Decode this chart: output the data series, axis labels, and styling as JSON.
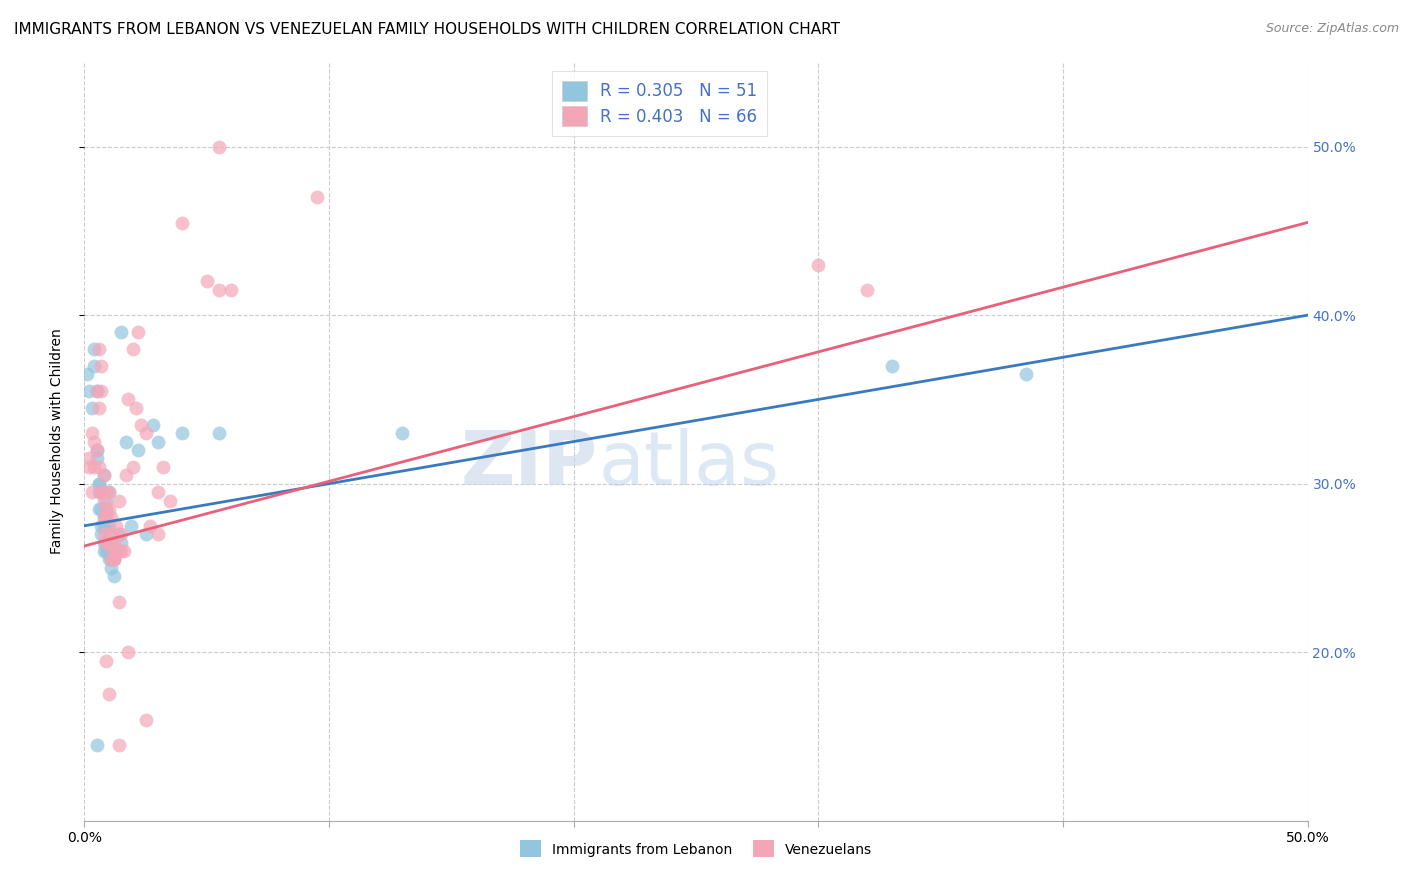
{
  "title": "IMMIGRANTS FROM LEBANON VS VENEZUELAN FAMILY HOUSEHOLDS WITH CHILDREN CORRELATION CHART",
  "source": "Source: ZipAtlas.com",
  "ylabel": "Family Households with Children",
  "xlim": [
    0.0,
    0.5
  ],
  "ylim": [
    0.1,
    0.55
  ],
  "yticks": [
    0.2,
    0.3,
    0.4,
    0.5
  ],
  "ytick_labels": [
    "20.0%",
    "30.0%",
    "40.0%",
    "50.0%"
  ],
  "xticks": [
    0.0,
    0.1,
    0.2,
    0.3,
    0.4,
    0.5
  ],
  "xtick_labels": [
    "0.0%",
    "",
    "",
    "",
    "",
    "50.0%"
  ],
  "legend_label1": "Immigrants from Lebanon",
  "legend_label2": "Venezuelans",
  "blue_color": "#92c5de",
  "pink_color": "#f4a6b8",
  "blue_line_color": "#3a7abf",
  "pink_line_color": "#e8607a",
  "blue_scatter": [
    [
      0.001,
      0.365
    ],
    [
      0.002,
      0.355
    ],
    [
      0.003,
      0.345
    ],
    [
      0.004,
      0.38
    ],
    [
      0.004,
      0.37
    ],
    [
      0.005,
      0.355
    ],
    [
      0.005,
      0.32
    ],
    [
      0.005,
      0.315
    ],
    [
      0.006,
      0.3
    ],
    [
      0.006,
      0.295
    ],
    [
      0.006,
      0.285
    ],
    [
      0.006,
      0.3
    ],
    [
      0.007,
      0.275
    ],
    [
      0.007,
      0.285
    ],
    [
      0.007,
      0.295
    ],
    [
      0.007,
      0.27
    ],
    [
      0.008,
      0.305
    ],
    [
      0.008,
      0.28
    ],
    [
      0.008,
      0.275
    ],
    [
      0.008,
      0.265
    ],
    [
      0.008,
      0.26
    ],
    [
      0.009,
      0.29
    ],
    [
      0.009,
      0.285
    ],
    [
      0.009,
      0.26
    ],
    [
      0.009,
      0.275
    ],
    [
      0.009,
      0.265
    ],
    [
      0.01,
      0.295
    ],
    [
      0.01,
      0.275
    ],
    [
      0.01,
      0.26
    ],
    [
      0.01,
      0.255
    ],
    [
      0.011,
      0.265
    ],
    [
      0.011,
      0.25
    ],
    [
      0.011,
      0.255
    ],
    [
      0.012,
      0.255
    ],
    [
      0.012,
      0.245
    ],
    [
      0.013,
      0.26
    ],
    [
      0.014,
      0.27
    ],
    [
      0.015,
      0.39
    ],
    [
      0.015,
      0.265
    ],
    [
      0.017,
      0.325
    ],
    [
      0.019,
      0.275
    ],
    [
      0.022,
      0.32
    ],
    [
      0.025,
      0.27
    ],
    [
      0.028,
      0.335
    ],
    [
      0.03,
      0.325
    ],
    [
      0.04,
      0.33
    ],
    [
      0.055,
      0.33
    ],
    [
      0.13,
      0.33
    ],
    [
      0.005,
      0.145
    ],
    [
      0.33,
      0.37
    ],
    [
      0.385,
      0.365
    ]
  ],
  "pink_scatter": [
    [
      0.002,
      0.315
    ],
    [
      0.002,
      0.31
    ],
    [
      0.003,
      0.33
    ],
    [
      0.003,
      0.295
    ],
    [
      0.004,
      0.325
    ],
    [
      0.004,
      0.31
    ],
    [
      0.005,
      0.355
    ],
    [
      0.005,
      0.32
    ],
    [
      0.006,
      0.38
    ],
    [
      0.006,
      0.345
    ],
    [
      0.006,
      0.31
    ],
    [
      0.007,
      0.37
    ],
    [
      0.007,
      0.295
    ],
    [
      0.007,
      0.355
    ],
    [
      0.007,
      0.295
    ],
    [
      0.008,
      0.305
    ],
    [
      0.008,
      0.28
    ],
    [
      0.008,
      0.29
    ],
    [
      0.008,
      0.27
    ],
    [
      0.009,
      0.285
    ],
    [
      0.009,
      0.265
    ],
    [
      0.009,
      0.295
    ],
    [
      0.009,
      0.28
    ],
    [
      0.01,
      0.295
    ],
    [
      0.01,
      0.27
    ],
    [
      0.01,
      0.285
    ],
    [
      0.01,
      0.265
    ],
    [
      0.011,
      0.28
    ],
    [
      0.011,
      0.255
    ],
    [
      0.011,
      0.27
    ],
    [
      0.012,
      0.255
    ],
    [
      0.012,
      0.265
    ],
    [
      0.012,
      0.26
    ],
    [
      0.012,
      0.255
    ],
    [
      0.013,
      0.275
    ],
    [
      0.013,
      0.26
    ],
    [
      0.014,
      0.29
    ],
    [
      0.014,
      0.26
    ],
    [
      0.015,
      0.26
    ],
    [
      0.015,
      0.27
    ],
    [
      0.016,
      0.26
    ],
    [
      0.017,
      0.305
    ],
    [
      0.018,
      0.35
    ],
    [
      0.02,
      0.38
    ],
    [
      0.02,
      0.31
    ],
    [
      0.021,
      0.345
    ],
    [
      0.022,
      0.39
    ],
    [
      0.023,
      0.335
    ],
    [
      0.025,
      0.33
    ],
    [
      0.027,
      0.275
    ],
    [
      0.03,
      0.295
    ],
    [
      0.03,
      0.27
    ],
    [
      0.032,
      0.31
    ],
    [
      0.035,
      0.29
    ],
    [
      0.04,
      0.455
    ],
    [
      0.05,
      0.42
    ],
    [
      0.055,
      0.415
    ],
    [
      0.095,
      0.47
    ],
    [
      0.009,
      0.195
    ],
    [
      0.01,
      0.175
    ],
    [
      0.014,
      0.23
    ],
    [
      0.014,
      0.145
    ],
    [
      0.025,
      0.16
    ],
    [
      0.018,
      0.2
    ],
    [
      0.06,
      0.415
    ],
    [
      0.3,
      0.43
    ],
    [
      0.055,
      0.5
    ],
    [
      0.32,
      0.415
    ]
  ],
  "watermark_zip": "ZIP",
  "watermark_atlas": "atlas",
  "background_color": "#ffffff",
  "grid_color": "#cccccc",
  "title_fontsize": 11,
  "label_fontsize": 10,
  "tick_fontsize": 10,
  "legend_fontsize": 12,
  "right_tick_color": "#4472c4",
  "source_color": "#888888"
}
